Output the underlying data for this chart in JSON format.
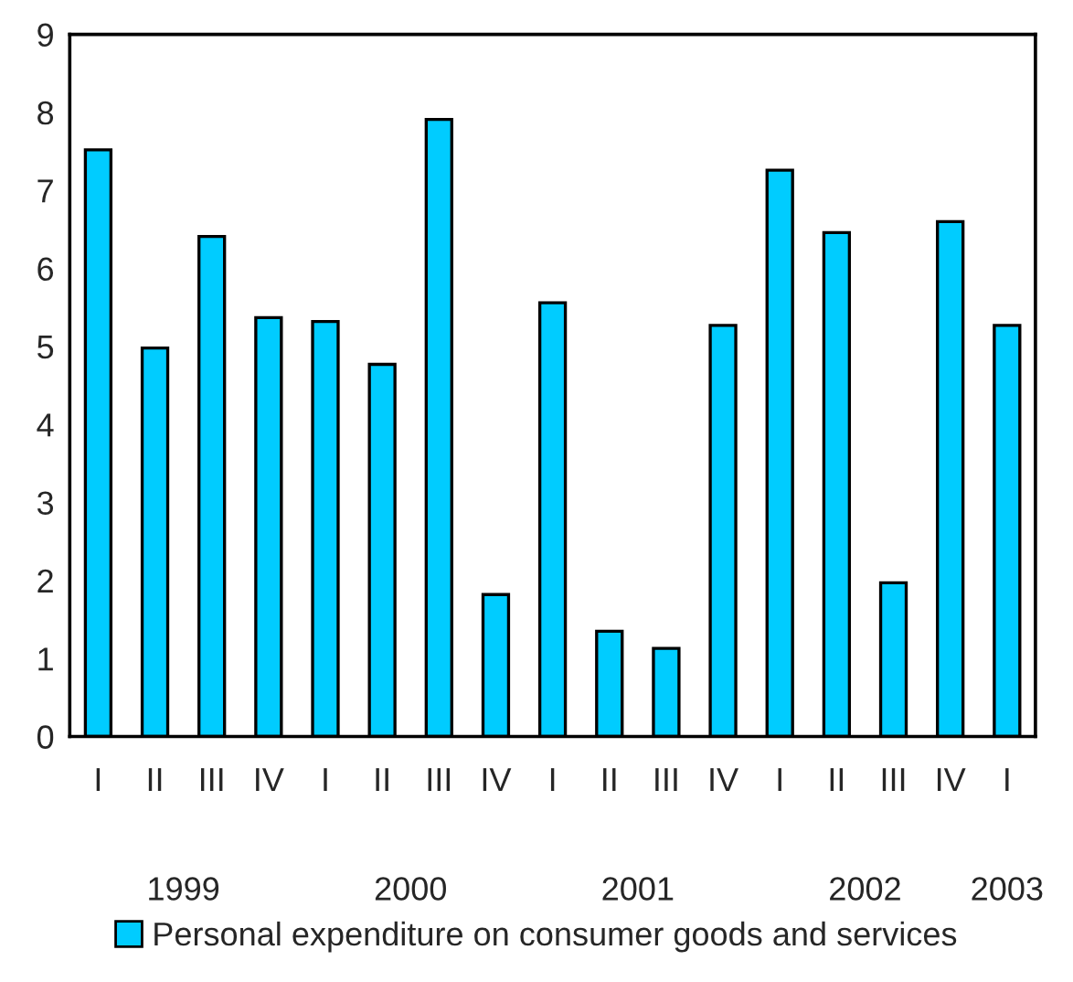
{
  "chart_data": {
    "type": "bar",
    "categories": [
      "I",
      "II",
      "III",
      "IV",
      "I",
      "II",
      "III",
      "IV",
      "I",
      "II",
      "III",
      "IV",
      "I",
      "II",
      "III",
      "IV",
      "I"
    ],
    "series": [
      {
        "name": "Personal expenditure on consumer goods and services",
        "color": "#00ccff",
        "values": [
          7.52,
          4.98,
          6.41,
          5.37,
          5.32,
          4.77,
          7.91,
          1.82,
          5.56,
          1.35,
          1.13,
          5.27,
          7.26,
          6.46,
          1.97,
          6.6,
          5.27
        ]
      }
    ],
    "annotations": [
      "1999",
      "2000",
      "2001",
      "2002",
      "2003"
    ],
    "ylim": [
      0,
      9
    ],
    "yticks": [
      0,
      1,
      2,
      3,
      4,
      5,
      6,
      7,
      8,
      9
    ],
    "grid": false,
    "legend": "bottom"
  }
}
